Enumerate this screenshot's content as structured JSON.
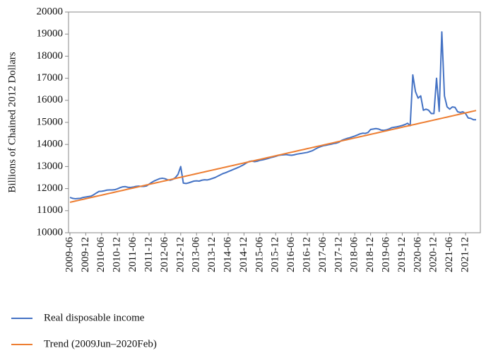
{
  "chart_data": {
    "type": "line",
    "y_label": "Billions of Chained 2012 Dollars",
    "categories": [
      "2009-06",
      null,
      null,
      null,
      null,
      null,
      "2009-12",
      null,
      null,
      null,
      null,
      null,
      "2010-06",
      null,
      null,
      null,
      null,
      null,
      "2010-12",
      null,
      null,
      null,
      null,
      null,
      "2011-06",
      null,
      null,
      null,
      null,
      null,
      "2011-12",
      null,
      null,
      null,
      null,
      null,
      "2012-06",
      null,
      null,
      null,
      null,
      null,
      "2012-12",
      null,
      null,
      null,
      null,
      null,
      "2013-06",
      null,
      null,
      null,
      null,
      null,
      "2013-12",
      null,
      null,
      null,
      null,
      null,
      "2014-06",
      null,
      null,
      null,
      null,
      null,
      "2014-12",
      null,
      null,
      null,
      null,
      null,
      "2015-06",
      null,
      null,
      null,
      null,
      null,
      "2015-12",
      null,
      null,
      null,
      null,
      null,
      "2016-06",
      null,
      null,
      null,
      null,
      null,
      "2016-12",
      null,
      null,
      null,
      null,
      null,
      "2017-06",
      null,
      null,
      null,
      null,
      null,
      "2017-12",
      null,
      null,
      null,
      null,
      null,
      "2018-06",
      null,
      null,
      null,
      null,
      null,
      "2018-12",
      null,
      null,
      null,
      null,
      null,
      "2019-06",
      null,
      null,
      null,
      null,
      null,
      "2019-12",
      null,
      null,
      null,
      null,
      null,
      "2020-06",
      null,
      null,
      null,
      null,
      null,
      "2020-12",
      null,
      null,
      null,
      null,
      null,
      "2021-06",
      null,
      null,
      null,
      null,
      null,
      "2021-12",
      null,
      null,
      null,
      null
    ],
    "series": [
      {
        "name": "Real disposable income",
        "color": "#4472c4",
        "values": [
          11600,
          11560,
          11540,
          11550,
          11560,
          11600,
          11620,
          11640,
          11660,
          11720,
          11800,
          11870,
          11880,
          11900,
          11930,
          11940,
          11940,
          11950,
          11990,
          12040,
          12080,
          12090,
          12060,
          12050,
          12070,
          12100,
          12110,
          12100,
          12100,
          12120,
          12200,
          12280,
          12350,
          12400,
          12450,
          12470,
          12450,
          12400,
          12380,
          12420,
          12500,
          12650,
          13000,
          12250,
          12230,
          12260,
          12300,
          12340,
          12350,
          12340,
          12380,
          12400,
          12390,
          12420,
          12460,
          12500,
          12560,
          12620,
          12680,
          12720,
          12770,
          12820,
          12870,
          12920,
          12970,
          13030,
          13090,
          13170,
          13230,
          13250,
          13220,
          13240,
          13280,
          13300,
          13330,
          13360,
          13400,
          13430,
          13460,
          13500,
          13520,
          13530,
          13540,
          13520,
          13510,
          13530,
          13560,
          13580,
          13600,
          13620,
          13640,
          13680,
          13720,
          13790,
          13850,
          13900,
          13940,
          13960,
          13990,
          14010,
          14040,
          14060,
          14100,
          14180,
          14230,
          14270,
          14300,
          14340,
          14380,
          14430,
          14480,
          14510,
          14500,
          14540,
          14680,
          14700,
          14720,
          14700,
          14650,
          14640,
          14660,
          14700,
          14760,
          14780,
          14800,
          14830,
          14860,
          14900,
          14960,
          14850,
          17150,
          16400,
          16100,
          16200,
          15550,
          15600,
          15550,
          15400,
          15400,
          17000,
          15500,
          19100,
          16200,
          15700,
          15600,
          15700,
          15680,
          15480,
          15450,
          15480,
          15400,
          15200,
          15180,
          15120,
          15120
        ]
      },
      {
        "name": "Trend (2009Jun–2020Feb)",
        "color": "#ed7d31",
        "values": [
          11380,
          11407,
          11434,
          11461,
          11488,
          11515,
          11542,
          11569,
          11596,
          11623,
          11650,
          11677,
          11704,
          11731,
          11758,
          11785,
          11812,
          11839,
          11866,
          11893,
          11920,
          11947,
          11974,
          12001,
          12028,
          12055,
          12082,
          12109,
          12136,
          12163,
          12190,
          12217,
          12244,
          12271,
          12298,
          12325,
          12352,
          12379,
          12406,
          12433,
          12460,
          12487,
          12514,
          12541,
          12568,
          12595,
          12622,
          12649,
          12676,
          12703,
          12730,
          12757,
          12784,
          12811,
          12838,
          12865,
          12892,
          12919,
          12946,
          12973,
          13000,
          13027,
          13054,
          13081,
          13108,
          13135,
          13162,
          13189,
          13216,
          13243,
          13270,
          13297,
          13324,
          13351,
          13378,
          13405,
          13432,
          13459,
          13486,
          13513,
          13540,
          13567,
          13594,
          13621,
          13648,
          13675,
          13702,
          13729,
          13756,
          13783,
          13810,
          13837,
          13864,
          13891,
          13918,
          13945,
          13972,
          13999,
          14026,
          14053,
          14080,
          14107,
          14134,
          14161,
          14188,
          14215,
          14242,
          14269,
          14296,
          14323,
          14350,
          14377,
          14404,
          14431,
          14458,
          14485,
          14512,
          14539,
          14566,
          14593,
          14620,
          14647,
          14674,
          14701,
          14728,
          14755,
          14782,
          14809,
          14836,
          14863,
          14890,
          14917,
          14944,
          14971,
          14998,
          15025,
          15052,
          15079,
          15106,
          15133,
          15160,
          15187,
          15214,
          15241,
          15268,
          15295,
          15322,
          15349,
          15376,
          15403,
          15430,
          15457,
          15484,
          15511,
          15538
        ]
      }
    ],
    "ylim": [
      10000,
      20000
    ],
    "yticks": [
      10000,
      11000,
      12000,
      13000,
      14000,
      15000,
      16000,
      17000,
      18000,
      19000,
      20000
    ],
    "grid": false,
    "legend": "bottom"
  }
}
